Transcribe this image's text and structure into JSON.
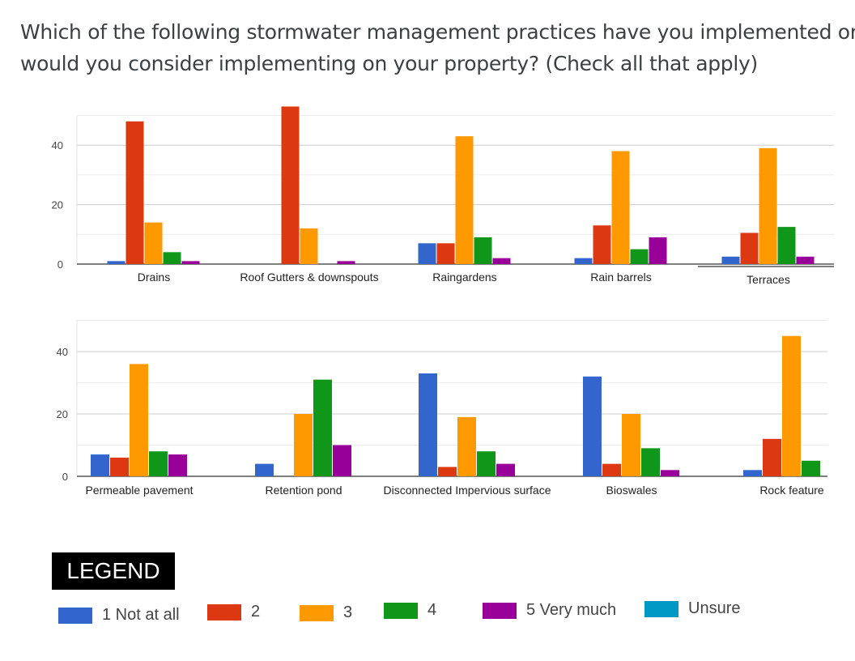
{
  "question": {
    "line1": "Which of the following stormwater management practices have you implemented or",
    "line2": "would you consider implementing on your property? (Check all that apply)"
  },
  "legend": {
    "title": "LEGEND",
    "items": [
      {
        "label": "1 Not at all",
        "color": "#3366cc"
      },
      {
        "label": "2",
        "color": "#dc3912"
      },
      {
        "label": "3",
        "color": "#ff9900"
      },
      {
        "label": "4",
        "color": "#109618"
      },
      {
        "label": "5 Very much",
        "color": "#990099"
      },
      {
        "label": "Unsure",
        "color": "#0099c6"
      }
    ]
  },
  "chart_data": [
    {
      "type": "bar",
      "ylim": [
        0,
        53
      ],
      "yticks": [
        0,
        20,
        40
      ],
      "grid": true,
      "categories": [
        "Drains",
        "Roof Gutters & downspouts",
        "Raingardens",
        "Rain barrels",
        "Terraces"
      ],
      "series": [
        {
          "name": "1 Not at all",
          "values": [
            1,
            0,
            7,
            2,
            2.5
          ]
        },
        {
          "name": "2",
          "values": [
            48,
            53,
            7,
            13,
            10.5
          ]
        },
        {
          "name": "3",
          "values": [
            14,
            12,
            43,
            38,
            39
          ]
        },
        {
          "name": "4",
          "values": [
            4,
            0,
            9,
            5,
            12.5
          ]
        },
        {
          "name": "5 Very much",
          "values": [
            1,
            1,
            2,
            9,
            2.5
          ]
        }
      ]
    },
    {
      "type": "bar",
      "ylim": [
        0,
        50
      ],
      "yticks": [
        0,
        20,
        40
      ],
      "grid": true,
      "categories": [
        "Permeable pavement",
        "Retention pond",
        "Disconnected Impervious surface",
        "Bioswales",
        "Rock feature"
      ],
      "series": [
        {
          "name": "1 Not at all",
          "values": [
            7,
            4,
            33,
            32,
            2
          ]
        },
        {
          "name": "2",
          "values": [
            6,
            0,
            3,
            4,
            12
          ]
        },
        {
          "name": "3",
          "values": [
            36,
            20,
            19,
            20,
            45
          ]
        },
        {
          "name": "4",
          "values": [
            8,
            31,
            8,
            9,
            5
          ]
        },
        {
          "name": "5 Very much",
          "values": [
            7,
            10,
            4,
            2,
            0
          ]
        }
      ]
    }
  ]
}
